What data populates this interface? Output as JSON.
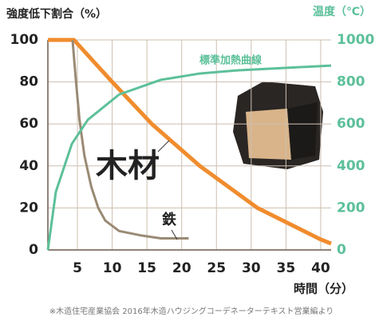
{
  "chart_data": {
    "type": "line",
    "title": "強度低下割合（%）",
    "y2_label": "温度（℃）",
    "x_label": "時間（分）",
    "source": "※木造住宅産業協会 2016年木造ハウジングコーデネーターテキスト営業編より",
    "xlim": [
      0.75,
      41.5
    ],
    "xticks": [
      5,
      10,
      15,
      20,
      25,
      30,
      35,
      40
    ],
    "ylim": [
      0,
      100
    ],
    "yticks": [
      0,
      20,
      40,
      60,
      80,
      100
    ],
    "y2lim": [
      0,
      1000
    ],
    "y2ticks": [
      0,
      200,
      400,
      600,
      800,
      1000
    ],
    "grid": true,
    "series": [
      {
        "name": "木材",
        "color": "#f08c2e",
        "x": [
          0.75,
          4.5,
          10,
          15.7,
          22.6,
          30.9,
          40,
          41.5
        ],
        "values": [
          100,
          100,
          80,
          60,
          40,
          20,
          5,
          3
        ]
      },
      {
        "name": "鉄",
        "color": "#9a8a74",
        "x": [
          4.3,
          4.8,
          5.3,
          6,
          7,
          8,
          9,
          11,
          14,
          17,
          21
        ],
        "values": [
          100,
          80,
          62,
          45,
          30,
          20,
          14,
          9,
          7,
          5.5,
          5.5
        ]
      },
      {
        "name": "標準加熱曲線",
        "color": "#5cc09a",
        "axis": "y2",
        "x": [
          0.75,
          1.9,
          4.2,
          6.5,
          11,
          17,
          22.6,
          28,
          41.5
        ],
        "values": [
          0,
          277,
          505,
          620,
          740,
          810,
          840,
          855,
          878
        ]
      }
    ]
  }
}
